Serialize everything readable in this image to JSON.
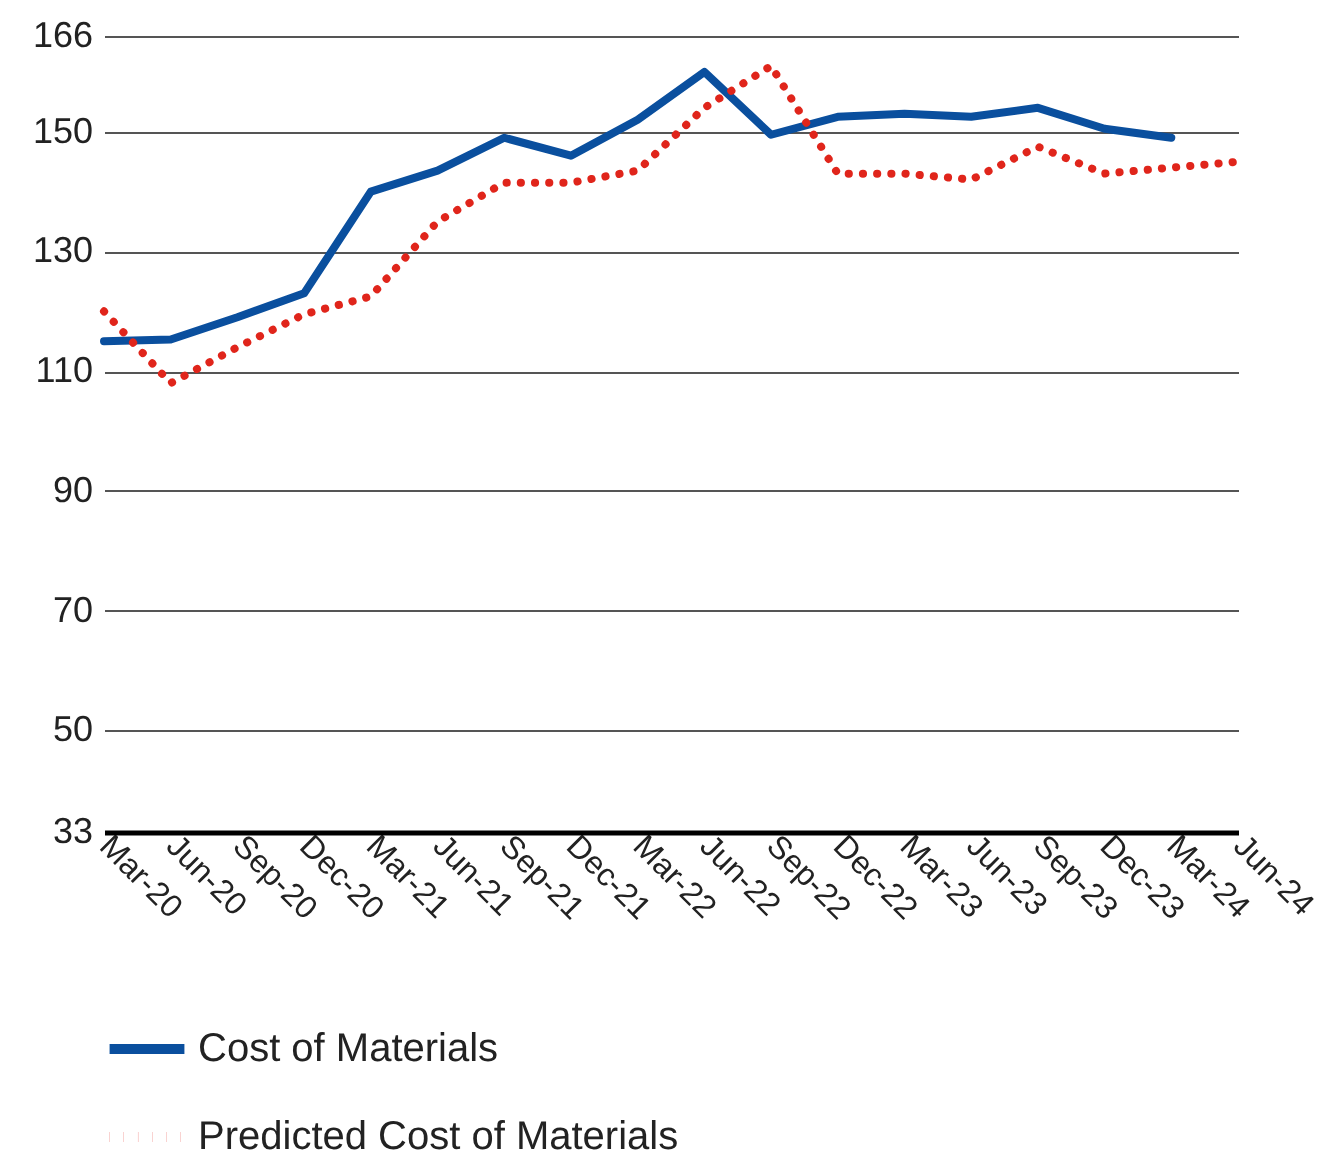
{
  "chart_data": {
    "type": "line",
    "categories": [
      "Mar-20",
      "Jun-20",
      "Sep-20",
      "Dec-20",
      "Mar-21",
      "Jun-21",
      "Sep-21",
      "Dec-21",
      "Mar-22",
      "Jun-22",
      "Sep-22",
      "Dec-22",
      "Mar-23",
      "Jun-23",
      "Sep-23",
      "Dec-23",
      "Mar-24",
      "Jun-24"
    ],
    "series": [
      {
        "name": "Cost of Materials",
        "color": "#0a4f9e",
        "line_style": "solid",
        "values": [
          115,
          115.3,
          119,
          123,
          140,
          143.5,
          149,
          146,
          152,
          160,
          149.5,
          152.5,
          153,
          152.5,
          154,
          150.5,
          149,
          null
        ]
      },
      {
        "name": "Predicted Cost of Materials",
        "color": "#e0251b",
        "line_style": "dotted",
        "values": [
          120,
          108,
          114,
          119.5,
          122.5,
          135,
          141.5,
          141.5,
          143.5,
          154,
          161,
          143,
          143,
          142,
          147.5,
          143,
          144,
          145
        ]
      }
    ],
    "ylim": [
      33,
      166
    ],
    "yticks": [
      33,
      50,
      70,
      90,
      110,
      130,
      150,
      166
    ],
    "grid": "y",
    "legend": "bottom"
  }
}
